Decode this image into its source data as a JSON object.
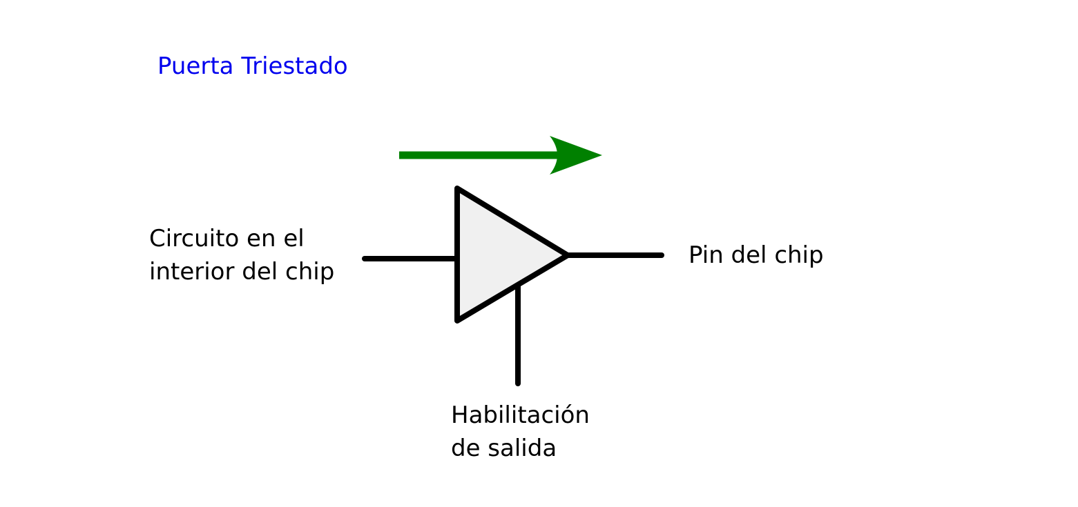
{
  "title": {
    "text": "Puerta Triestado",
    "color": "#0000ee"
  },
  "labels": {
    "input_line1": "Circuito en el",
    "input_line2": "interior del chip",
    "output": "Pin del chip",
    "enable_line1": "Habilitación",
    "enable_line2": "de salida"
  },
  "colors": {
    "arrow": "#008000",
    "buffer_fill": "#f0f0f0",
    "stroke": "#000000"
  }
}
